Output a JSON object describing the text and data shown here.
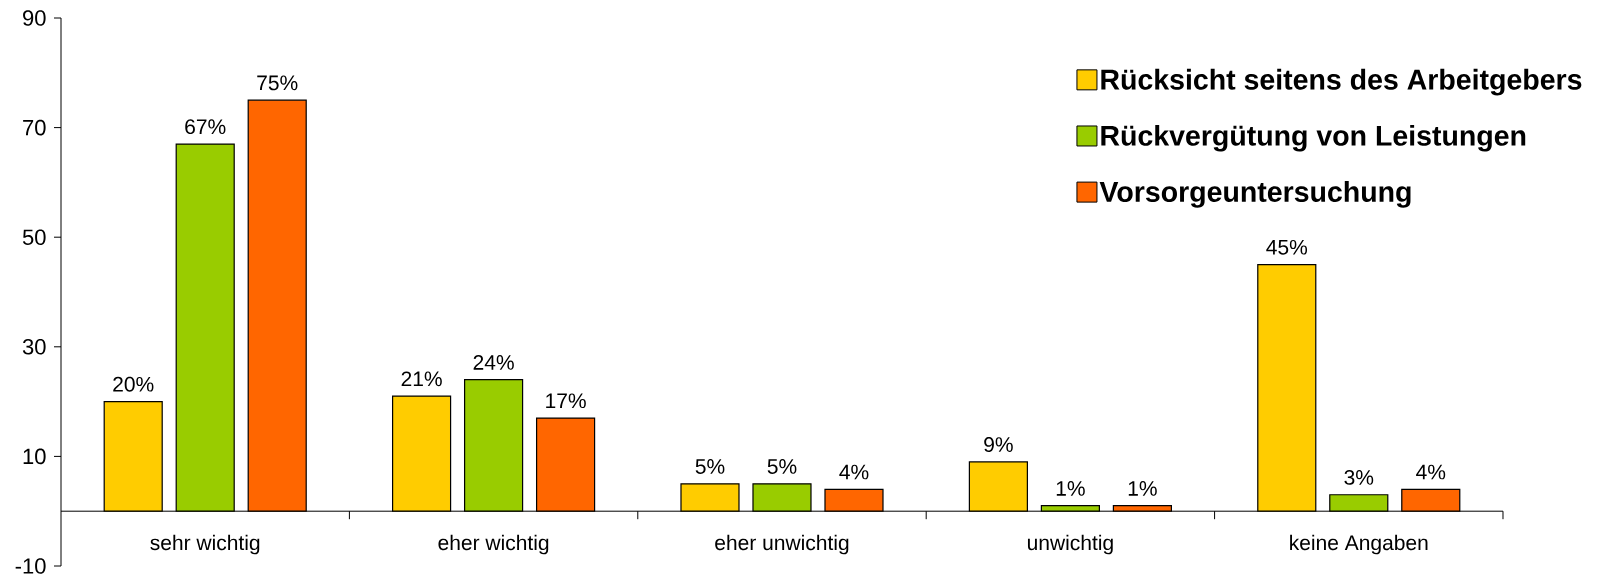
{
  "chart_data": {
    "type": "bar",
    "categories": [
      "sehr wichtig",
      "eher wichtig",
      "eher unwichtig",
      "unwichtig",
      "keine Angaben"
    ],
    "series": [
      {
        "name": "Rücksicht seitens des Arbeitgebers",
        "color": "#ffcc00",
        "values": [
          20,
          21,
          5,
          9,
          45
        ],
        "value_labels": [
          "20%",
          "21%",
          "5%",
          "9%",
          "45%"
        ]
      },
      {
        "name": "Rückvergütung von Leistungen",
        "color": "#99cc00",
        "values": [
          67,
          24,
          5,
          1,
          3
        ],
        "value_labels": [
          "67%",
          "24%",
          "5%",
          "1%",
          "3%"
        ]
      },
      {
        "name": "Vorsorgeuntersuchung",
        "color": "#ff6600",
        "values": [
          75,
          17,
          4,
          1,
          4
        ],
        "value_labels": [
          "75%",
          "17%",
          "4%",
          "1%",
          "4%"
        ]
      }
    ],
    "ylim": [
      -10,
      90
    ],
    "yticks": [
      -10,
      10,
      30,
      50,
      70,
      90
    ],
    "legend": "top right"
  }
}
